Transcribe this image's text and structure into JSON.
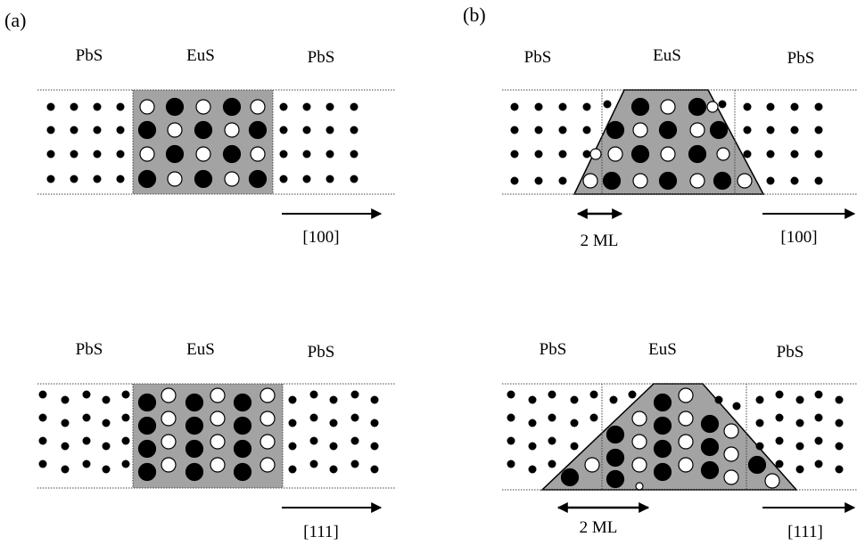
{
  "panels": [
    {
      "label": "(a)",
      "rows": [
        {
          "layers": [
            "PbS",
            "EuS",
            "PbS"
          ],
          "direction": "[100]",
          "interface": "abrupt",
          "stacking": "square"
        },
        {
          "layers": [
            "PbS",
            "EuS",
            "PbS"
          ],
          "direction": "[111]",
          "interface": "abrupt",
          "stacking": "staggered"
        }
      ]
    },
    {
      "label": "(b)",
      "rows": [
        {
          "layers": [
            "PbS",
            "EuS",
            "PbS"
          ],
          "direction": "[100]",
          "interface": "graded",
          "stacking": "square",
          "width_label": "2 ML"
        },
        {
          "layers": [
            "PbS",
            "EuS",
            "PbS"
          ],
          "direction": "[111]",
          "interface": "graded",
          "stacking": "staggered",
          "width_label": "2 ML"
        }
      ]
    }
  ],
  "colors": {
    "eus_fill": "#a3a3a3",
    "ink": "#000000",
    "open_atom": "#ffffff"
  }
}
